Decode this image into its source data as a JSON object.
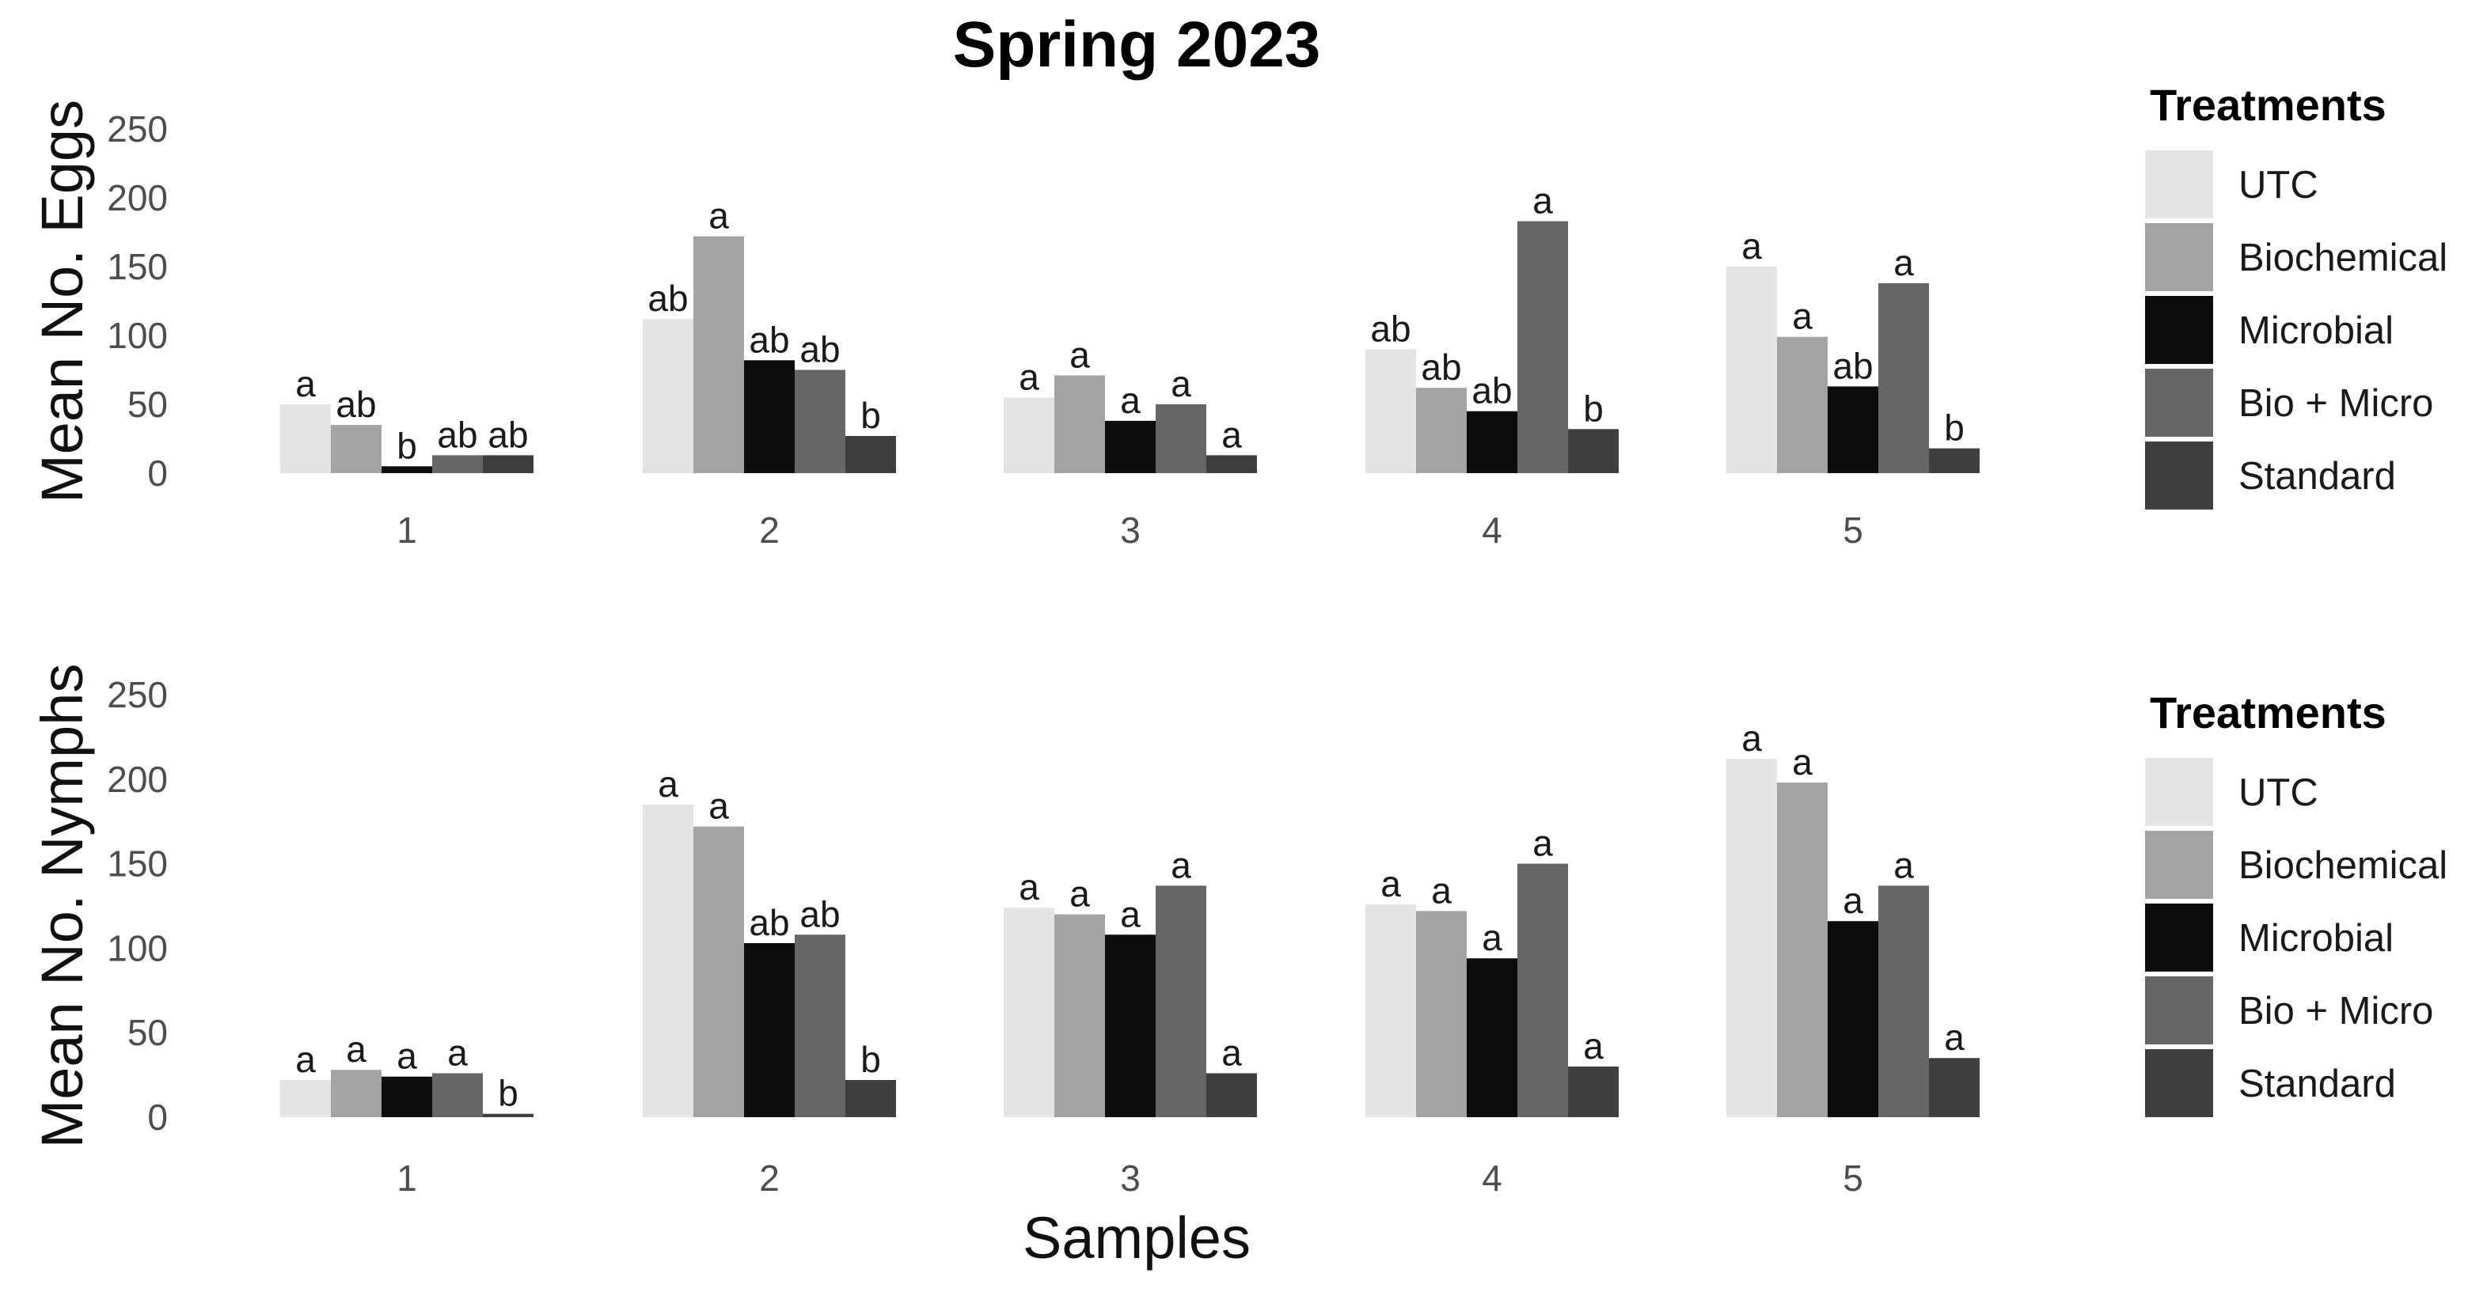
{
  "chart_data": [
    {
      "type": "bar",
      "id": "eggs",
      "title": "Spring 2023",
      "xlabel": "",
      "ylabel": "Mean No. Eggs",
      "ylim": [
        0,
        250
      ],
      "yticks": [
        0,
        50,
        100,
        150,
        200,
        250
      ],
      "grid": false,
      "legend": {
        "title": "Treatments",
        "position": "right"
      },
      "categories": [
        "1",
        "2",
        "3",
        "4",
        "5"
      ],
      "series": [
        {
          "name": "UTC",
          "color": "#e4e4e4",
          "values": [
            50,
            112,
            55,
            90,
            150
          ],
          "labels": [
            "a",
            "ab",
            "a",
            "ab",
            "a"
          ]
        },
        {
          "name": "Biochemical",
          "color": "#a3a3a3",
          "values": [
            35,
            172,
            71,
            62,
            99
          ],
          "labels": [
            "ab",
            "a",
            "a",
            "ab",
            "a"
          ]
        },
        {
          "name": "Microbial",
          "color": "#0d0d0d",
          "values": [
            5,
            82,
            38,
            45,
            63
          ],
          "labels": [
            "b",
            "ab",
            "a",
            "ab",
            "ab"
          ]
        },
        {
          "name": "Bio + Micro",
          "color": "#666666",
          "values": [
            13,
            75,
            50,
            183,
            138
          ],
          "labels": [
            "ab",
            "ab",
            "a",
            "a",
            "a"
          ]
        },
        {
          "name": "Standard",
          "color": "#3f3f3f",
          "values": [
            13,
            27,
            13,
            32,
            18
          ],
          "labels": [
            "ab",
            "b",
            "a",
            "b",
            "b"
          ]
        }
      ]
    },
    {
      "type": "bar",
      "id": "nymphs",
      "title": "",
      "xlabel": "Samples",
      "ylabel": "Mean No. Nymphs",
      "ylim": [
        0,
        250
      ],
      "yticks": [
        0,
        50,
        100,
        150,
        200,
        250
      ],
      "grid": false,
      "legend": {
        "title": "Treatments",
        "position": "right"
      },
      "categories": [
        "1",
        "2",
        "3",
        "4",
        "5"
      ],
      "series": [
        {
          "name": "UTC",
          "color": "#e4e4e4",
          "values": [
            22,
            185,
            124,
            126,
            212
          ],
          "labels": [
            "a",
            "a",
            "a",
            "a",
            "a"
          ]
        },
        {
          "name": "Biochemical",
          "color": "#a3a3a3",
          "values": [
            28,
            172,
            120,
            122,
            198
          ],
          "labels": [
            "a",
            "a",
            "a",
            "a",
            "a"
          ]
        },
        {
          "name": "Microbial",
          "color": "#0d0d0d",
          "values": [
            24,
            103,
            108,
            94,
            116
          ],
          "labels": [
            "a",
            "ab",
            "a",
            "a",
            "a"
          ]
        },
        {
          "name": "Bio + Micro",
          "color": "#666666",
          "values": [
            26,
            108,
            137,
            150,
            137
          ],
          "labels": [
            "a",
            "ab",
            "a",
            "a",
            "a"
          ]
        },
        {
          "name": "Standard",
          "color": "#3f3f3f",
          "values": [
            2,
            22,
            26,
            30,
            35
          ],
          "labels": [
            "b",
            "b",
            "a",
            "a",
            "a"
          ]
        }
      ]
    }
  ]
}
